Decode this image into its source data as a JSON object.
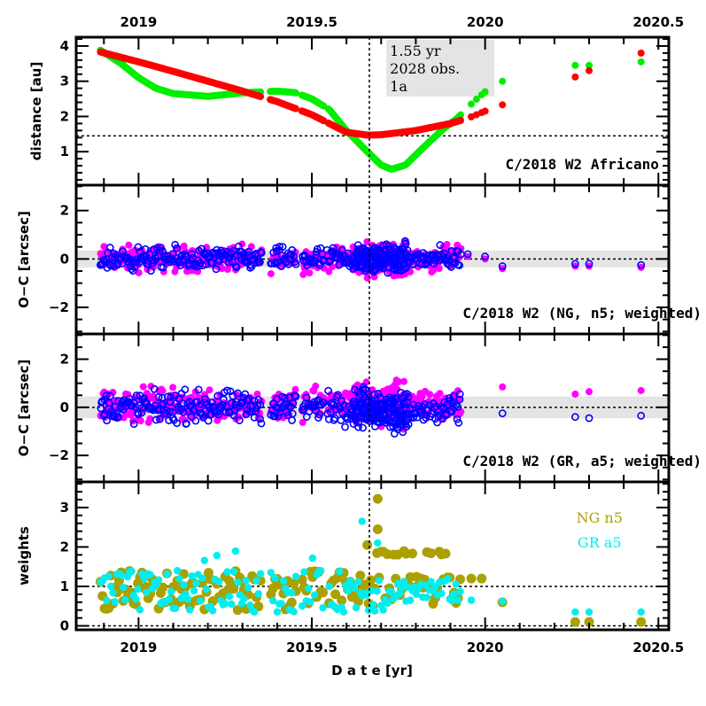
{
  "chart_data": {
    "type": "scatter",
    "x_axis": {
      "label": "D a t e [yr]",
      "range": [
        2018.82,
        2020.53
      ],
      "major_ticks": [
        2019,
        2019.5,
        2020,
        2020.5
      ],
      "tick_labels": [
        "2019",
        "2019.5",
        "2020",
        "2020.5"
      ],
      "minor_step": 0.1
    },
    "vertical_marker_x": 2019.666,
    "panels": [
      {
        "id": "distance",
        "ylabel": "distance [au]",
        "ylim": [
          0.05,
          4.25
        ],
        "yticks": [
          1,
          2,
          3,
          4
        ],
        "ytick_labels": [
          "1",
          "2",
          "3",
          "4"
        ],
        "y_minor_step": 0.2,
        "hline": 1.45,
        "label": "C/2018 W2 Africano",
        "info_box": [
          "1.55 yr",
          "2028 obs.",
          "1a"
        ],
        "series": [
          {
            "name": "heliocentric distance",
            "color": "#ff0000",
            "points": [
              [
                2018.89,
                3.83
              ],
              [
                2019.0,
                3.55
              ],
              [
                2019.1,
                3.28
              ],
              [
                2019.2,
                3.0
              ],
              [
                2019.3,
                2.72
              ],
              [
                2019.4,
                2.42
              ],
              [
                2019.5,
                2.05
              ],
              [
                2019.6,
                1.55
              ],
              [
                2019.66,
                1.47
              ],
              [
                2019.7,
                1.48
              ],
              [
                2019.8,
                1.6
              ],
              [
                2019.9,
                1.8
              ],
              [
                2019.95,
                1.95
              ],
              [
                2020.0,
                2.15
              ],
              [
                2020.05,
                2.33
              ],
              [
                2020.26,
                3.12
              ],
              [
                2020.3,
                3.3
              ],
              [
                2020.45,
                3.8
              ]
            ]
          },
          {
            "name": "geocentric distance",
            "color": "#00ee00",
            "points": [
              [
                2018.89,
                3.88
              ],
              [
                2018.95,
                3.5
              ],
              [
                2019.0,
                3.1
              ],
              [
                2019.05,
                2.8
              ],
              [
                2019.1,
                2.65
              ],
              [
                2019.2,
                2.57
              ],
              [
                2019.3,
                2.67
              ],
              [
                2019.4,
                2.72
              ],
              [
                2019.45,
                2.68
              ],
              [
                2019.5,
                2.5
              ],
              [
                2019.55,
                2.2
              ],
              [
                2019.6,
                1.6
              ],
              [
                2019.66,
                1.0
              ],
              [
                2019.7,
                0.62
              ],
              [
                2019.73,
                0.5
              ],
              [
                2019.77,
                0.62
              ],
              [
                2019.82,
                1.1
              ],
              [
                2019.88,
                1.65
              ],
              [
                2019.92,
                1.95
              ],
              [
                2019.97,
                2.45
              ],
              [
                2020.0,
                2.7
              ],
              [
                2020.05,
                3.0
              ],
              [
                2020.26,
                3.45
              ],
              [
                2020.3,
                3.45
              ],
              [
                2020.45,
                3.55
              ]
            ]
          }
        ]
      },
      {
        "id": "oc-ng",
        "ylabel": "O−C [arcsec]",
        "ylim": [
          -3.1,
          3.05
        ],
        "yticks": [
          -2,
          0,
          2
        ],
        "ytick_labels": [
          "−2",
          "0",
          "2"
        ],
        "y_minor_step": 0.5,
        "hline": 0,
        "band": [
          -0.35,
          0.35
        ],
        "label": "C/2018 W2 (NG, n5; weighted)",
        "series": [
          {
            "name": "RA residuals",
            "color": "#ff00ff",
            "marker": "filled-circle",
            "spread": 0.45
          },
          {
            "name": "Dec residuals",
            "color": "#0000ff",
            "marker": "open-circle",
            "spread": 0.4
          }
        ]
      },
      {
        "id": "oc-gr",
        "ylabel": "O−C [arcsec]",
        "ylim": [
          -3.1,
          3.05
        ],
        "yticks": [
          -2,
          0,
          2
        ],
        "ytick_labels": [
          "−2",
          "0",
          "2"
        ],
        "y_minor_step": 0.5,
        "hline": 0,
        "band": [
          -0.45,
          0.45
        ],
        "label": "C/2018 W2 (GR, a5; weighted)",
        "series": [
          {
            "name": "RA residuals",
            "color": "#ff00ff",
            "marker": "filled-circle",
            "spread": 0.6
          },
          {
            "name": "Dec residuals",
            "color": "#0000ff",
            "marker": "open-circle",
            "spread": 0.55
          }
        ]
      },
      {
        "id": "weights",
        "ylabel": "weights",
        "ylim": [
          -0.1,
          3.65
        ],
        "yticks": [
          0,
          1,
          2,
          3
        ],
        "ytick_labels": [
          "0",
          "1",
          "2",
          "3"
        ],
        "y_minor_step": 0.2,
        "hlines": [
          0,
          1
        ],
        "legend": [
          {
            "label": "NG n5",
            "color": "#aaa000"
          },
          {
            "label": "GR a5",
            "color": "#00eeee"
          }
        ],
        "series": [
          {
            "name": "NG n5",
            "color": "#aaa000",
            "marker": "large-filled-circle"
          },
          {
            "name": "GR a5",
            "color": "#00eeee",
            "marker": "filled-circle"
          }
        ]
      }
    ],
    "observation_clusters": [
      2018.89,
      2018.92,
      2018.97,
      2019.05,
      2019.1,
      2019.15,
      2019.2,
      2019.25,
      2019.3,
      2019.35,
      2019.4,
      2019.45,
      2019.5,
      2019.55,
      2019.6,
      2019.65,
      2019.7,
      2019.75,
      2019.8,
      2019.85,
      2019.9,
      2019.95,
      2020.0,
      2020.05,
      2020.26,
      2020.3,
      2020.45
    ],
    "late_points": {
      "oc_ng": [
        [
          2019.95,
          0.2
        ],
        [
          2020.0,
          0.1
        ],
        [
          2020.05,
          -0.3
        ],
        [
          2020.26,
          -0.2
        ],
        [
          2020.3,
          -0.2
        ],
        [
          2020.45,
          -0.25
        ]
      ],
      "oc_gr_ra": [
        [
          2020.05,
          0.85
        ],
        [
          2020.26,
          0.55
        ],
        [
          2020.3,
          0.65
        ],
        [
          2020.45,
          0.7
        ]
      ],
      "oc_gr_dec": [
        [
          2020.05,
          -0.25
        ],
        [
          2020.26,
          -0.4
        ],
        [
          2020.3,
          -0.45
        ],
        [
          2020.45,
          -0.35
        ]
      ],
      "w_ng": [
        [
          2020.05,
          0.6
        ],
        [
          2020.26,
          0.1
        ],
        [
          2020.3,
          0.1
        ],
        [
          2020.45,
          0.1
        ]
      ],
      "w_gr": [
        [
          2020.05,
          0.62
        ],
        [
          2020.26,
          0.35
        ],
        [
          2020.3,
          0.35
        ],
        [
          2020.45,
          0.35
        ]
      ]
    }
  }
}
